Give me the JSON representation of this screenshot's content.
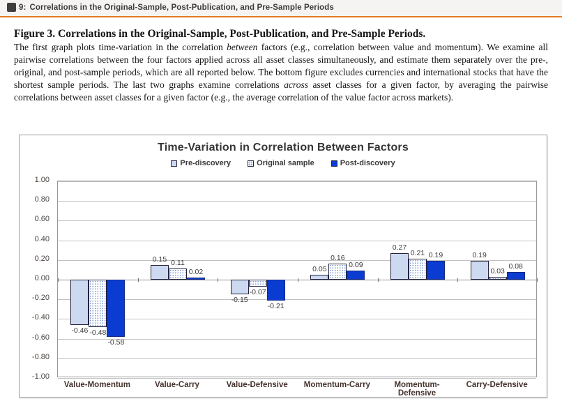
{
  "header": {
    "icon_glyph": "图",
    "figure_label": "9:",
    "title": "Correlations in the Original-Sample, Post-Publication, and Pre-Sample Periods"
  },
  "caption": {
    "heading": "Figure 3. Correlations in the Original-Sample, Post-Publication, and Pre-Sample Periods.",
    "body_parts": [
      {
        "t": "The first graph plots time-variation in the correlation ",
        "i": false
      },
      {
        "t": "between",
        "i": true
      },
      {
        "t": " factors (e.g., correlation between value and momentum). We examine all pairwise correlations between the four factors applied across all asset classes simultaneously, and estimate them separately over the pre-, original, and post-sample periods, which are all reported below. The bottom figure excludes currencies and international stocks that have the shortest sample periods. The last two graphs examine correlations ",
        "i": false
      },
      {
        "t": "across",
        "i": true
      },
      {
        "t": " asset classes for a given factor, by averaging the pairwise correlations between asset classes for a given factor (e.g., the average correlation of the value factor across markets).",
        "i": false
      }
    ]
  },
  "chart_data": {
    "type": "bar",
    "title": "Time-Variation in Correlation Between Factors",
    "categories": [
      "Value-Momentum",
      "Value-Carry",
      "Value-Defensive",
      "Momentum-Carry",
      "Momentum-Defensive",
      "Carry-Defensive"
    ],
    "series": [
      {
        "name": "Pre-discovery",
        "style": "light",
        "values": [
          -0.46,
          0.15,
          -0.15,
          0.05,
          0.27,
          0.19
        ]
      },
      {
        "name": "Original sample",
        "style": "dotted",
        "values": [
          -0.48,
          0.11,
          -0.07,
          0.16,
          0.21,
          0.03
        ]
      },
      {
        "name": "Post-discovery",
        "style": "solid",
        "values": [
          -0.58,
          0.02,
          -0.21,
          0.09,
          0.19,
          0.08
        ]
      }
    ],
    "ylim": [
      -1.0,
      1.0
    ],
    "ytick_step": 0.2,
    "ytick_labels": [
      "1.00",
      "0.80",
      "0.60",
      "0.40",
      "0.20",
      "0.00",
      "-0.20",
      "-0.40",
      "-0.60",
      "-0.80",
      "-1.00"
    ],
    "grid": true,
    "legend_position": "top"
  },
  "colors": {
    "accent_rule": "#e8781e",
    "bar_pre_discovery": "#cdd8f1",
    "bar_original_sample_dots": "#7b97d6",
    "bar_post_discovery": "#0b3cd1",
    "bar_border": "#23233f",
    "gridline": "#c2c2c2"
  }
}
